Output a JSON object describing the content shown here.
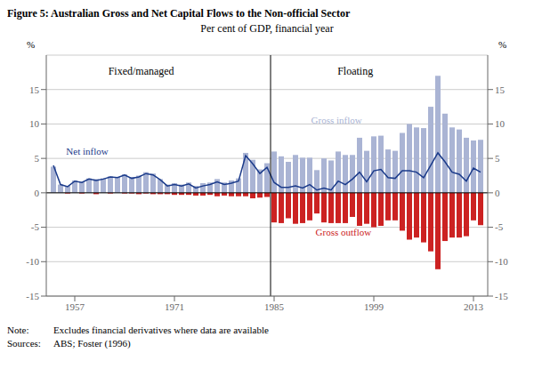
{
  "chart_data": {
    "type": "bar",
    "title": "Figure 5: Australian Gross and Net Capital Flows to the Non-official Sector",
    "subtitle": "Per cent of GDP, financial year",
    "x": [
      1954,
      1955,
      1956,
      1957,
      1958,
      1959,
      1960,
      1961,
      1962,
      1963,
      1964,
      1965,
      1966,
      1967,
      1968,
      1969,
      1970,
      1971,
      1972,
      1973,
      1974,
      1975,
      1976,
      1977,
      1978,
      1979,
      1980,
      1981,
      1982,
      1983,
      1984,
      1985,
      1986,
      1987,
      1988,
      1989,
      1990,
      1991,
      1992,
      1993,
      1994,
      1995,
      1996,
      1997,
      1998,
      1999,
      2000,
      2001,
      2002,
      2003,
      2004,
      2005,
      2006,
      2007,
      2008,
      2009,
      2010,
      2011,
      2012,
      2013,
      2014
    ],
    "series": [
      {
        "name": "Gross inflow",
        "type": "bar",
        "color": "#aab4d4",
        "values": [
          3.8,
          1.2,
          1.0,
          1.8,
          1.6,
          2.1,
          2.0,
          2.1,
          2.4,
          2.3,
          2.7,
          2.3,
          2.5,
          3.0,
          2.8,
          2.0,
          1.2,
          1.4,
          1.2,
          1.5,
          1.0,
          1.4,
          1.5,
          2.0,
          1.5,
          1.8,
          2.1,
          5.8,
          4.8,
          3.4,
          4.3,
          6.0,
          5.3,
          4.5,
          5.5,
          5.1,
          5.1,
          3.3,
          5.0,
          4.7,
          6.0,
          5.5,
          5.5,
          8.0,
          6.1,
          8.2,
          8.3,
          6.3,
          6.1,
          8.7,
          10.0,
          9.5,
          9.4,
          12.5,
          17.0,
          11.5,
          9.5,
          9.2,
          8.0,
          7.6,
          7.7
        ]
      },
      {
        "name": "Gross outflow",
        "type": "bar",
        "color": "#cc2222",
        "values": [
          0.0,
          0.0,
          -0.1,
          0.0,
          -0.1,
          0.0,
          -0.2,
          0.0,
          -0.1,
          0.0,
          -0.1,
          -0.1,
          -0.2,
          -0.1,
          -0.2,
          -0.2,
          -0.2,
          -0.3,
          -0.3,
          -0.3,
          -0.4,
          -0.4,
          -0.3,
          -0.5,
          -0.4,
          -0.5,
          -0.5,
          -0.5,
          -0.8,
          -0.7,
          -0.6,
          -4.3,
          -4.4,
          -3.7,
          -4.5,
          -4.4,
          -4.0,
          -3.0,
          -4.3,
          -4.4,
          -4.4,
          -4.4,
          -3.5,
          -4.8,
          -4.5,
          -5.0,
          -4.8,
          -4.0,
          -4.0,
          -5.5,
          -6.8,
          -6.5,
          -7.2,
          -8.5,
          -11.1,
          -7.0,
          -6.5,
          -6.5,
          -6.3,
          -4.0,
          -4.7
        ]
      },
      {
        "name": "Net inflow",
        "type": "line",
        "color": "#1a3a8a",
        "values": [
          4.0,
          1.2,
          0.9,
          1.7,
          1.5,
          2.0,
          1.8,
          2.0,
          2.3,
          2.2,
          2.6,
          2.1,
          2.3,
          2.8,
          2.6,
          1.9,
          1.0,
          1.2,
          1.0,
          1.3,
          0.7,
          1.0,
          1.2,
          1.6,
          1.2,
          1.4,
          1.7,
          5.4,
          4.2,
          2.8,
          3.7,
          1.5,
          0.8,
          0.8,
          1.0,
          0.7,
          1.2,
          0.4,
          0.7,
          0.4,
          1.7,
          1.2,
          2.0,
          3.0,
          1.6,
          3.2,
          3.4,
          2.2,
          2.1,
          3.2,
          3.2,
          3.0,
          2.2,
          4.0,
          5.8,
          4.5,
          3.0,
          2.7,
          1.7,
          3.6,
          3.0
        ]
      }
    ],
    "stacked": true,
    "xlim": [
      1953.0,
      2015.0
    ],
    "xticks": [
      1957,
      1971,
      1985,
      1999,
      2013
    ],
    "ylim": [
      -15,
      20
    ],
    "yticks": [
      -15,
      -10,
      -5,
      0,
      5,
      10,
      15
    ],
    "y2lim": [
      -15,
      20
    ],
    "y2ticks": [
      -15,
      -10,
      -5,
      0,
      5,
      10,
      15
    ],
    "ylabel": "%",
    "y2label": "%",
    "grid": true,
    "vlines": [
      1984.5
    ],
    "hlines": [
      0
    ],
    "annotations": [
      "Fixed/managed",
      "Floating"
    ],
    "footnotes": [
      {
        "label": "Note:",
        "text": "Excludes financial derivatives where data are available"
      },
      {
        "label": "Sources:",
        "text": "ABS; Foster (1996)"
      }
    ]
  }
}
